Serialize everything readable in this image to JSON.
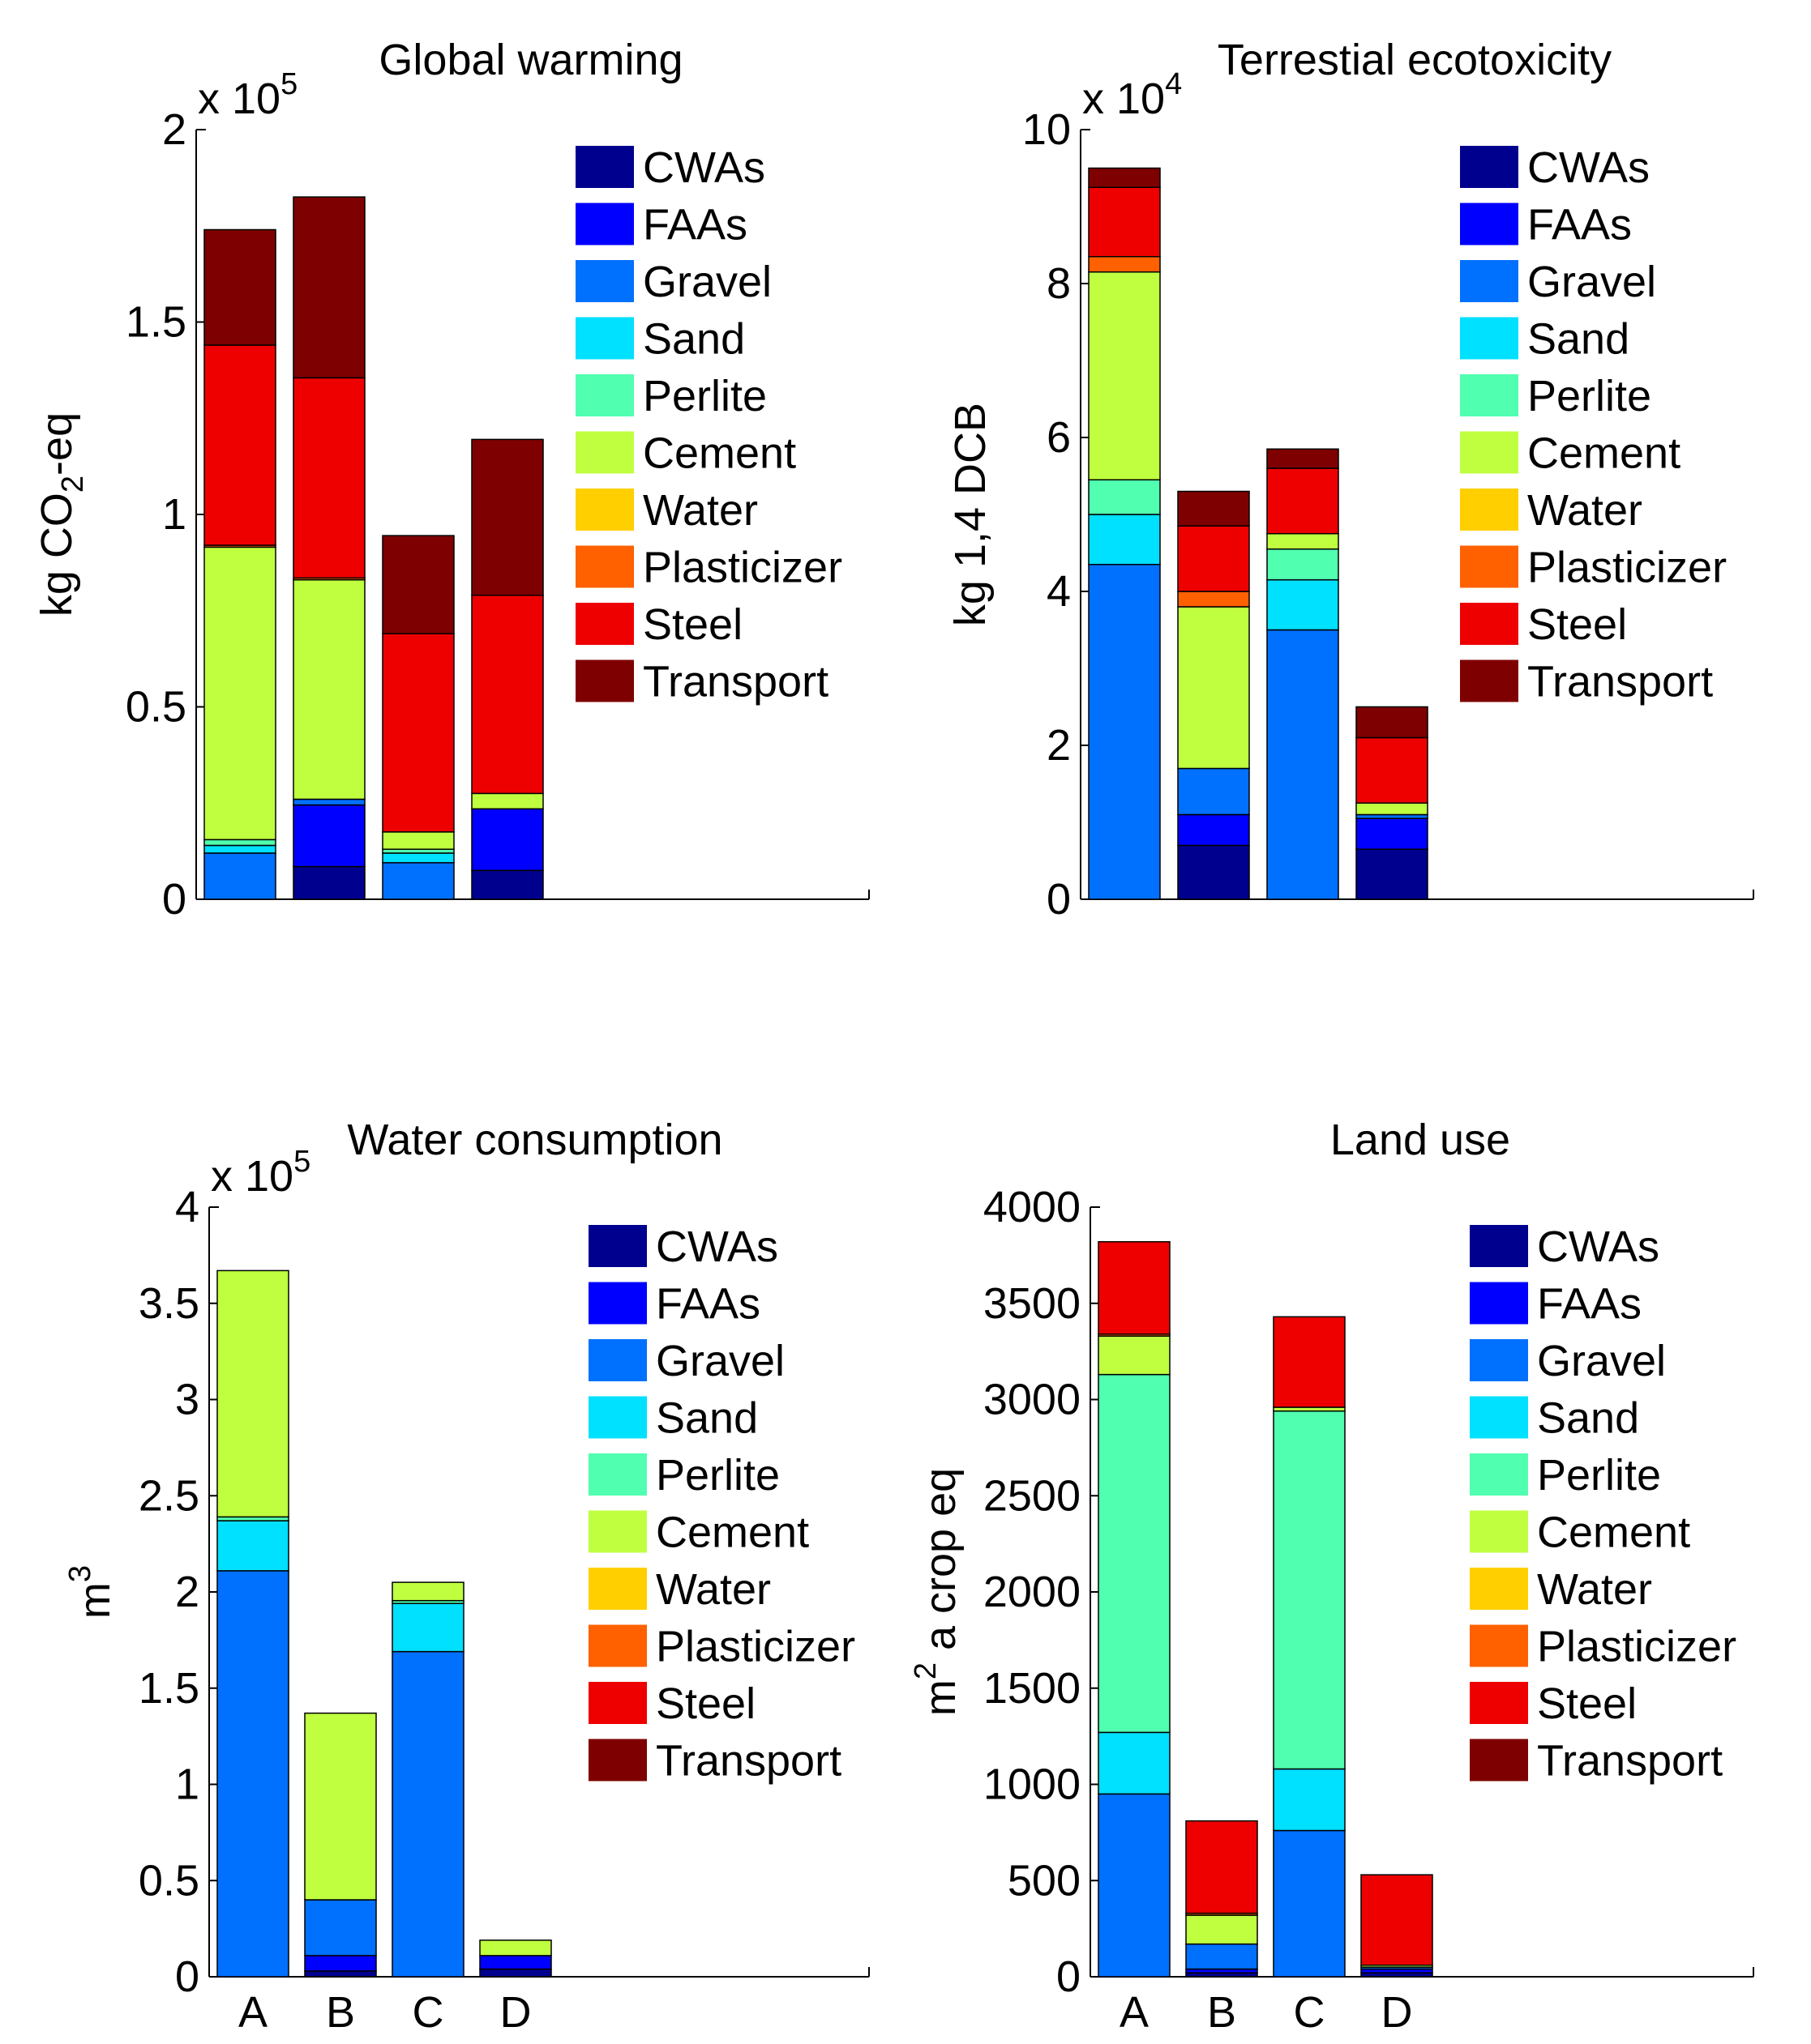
{
  "legend_labels": [
    "CWAs",
    "FAAs",
    "Gravel",
    "Sand",
    "Perlite",
    "Cement",
    "Water",
    "Plasticizer",
    "Steel",
    "Transport"
  ],
  "colors": {
    "CWAs": "#00008f",
    "FAAs": "#0000ff",
    "Gravel": "#0070ff",
    "Sand": "#00e0ff",
    "Perlite": "#50ffaf",
    "Cement": "#bfff40",
    "Water": "#ffcf00",
    "Plasticizer": "#ff6000",
    "Steel": "#ef0000",
    "Transport": "#7f0000"
  },
  "chart_data": [
    {
      "type": "bar",
      "stacked": true,
      "title": "Global warming",
      "ylabel": "kg CO2-eq",
      "ylabel_sub": "2",
      "ylabel_parts": [
        "kg CO",
        "-eq"
      ],
      "multiplier": "x 10",
      "multiplier_exp": "5",
      "ylim": [
        0,
        200000
      ],
      "yticks": [
        0,
        50000,
        100000,
        150000,
        200000
      ],
      "ytick_labels": [
        "0",
        "0.5",
        "1",
        "1.5",
        "2"
      ],
      "categories": [
        "A",
        "B",
        "C",
        "D"
      ],
      "show_xtick_labels": false,
      "series": [
        {
          "name": "CWAs",
          "values": [
            0,
            8500,
            0,
            7500
          ]
        },
        {
          "name": "FAAs",
          "values": [
            0,
            16000,
            0,
            16000
          ]
        },
        {
          "name": "Gravel",
          "values": [
            12000,
            1500,
            9500,
            0
          ]
        },
        {
          "name": "Sand",
          "values": [
            2000,
            0,
            2500,
            0
          ]
        },
        {
          "name": "Perlite",
          "values": [
            1500,
            0,
            1000,
            0
          ]
        },
        {
          "name": "Cement",
          "values": [
            76000,
            57000,
            4500,
            4000
          ]
        },
        {
          "name": "Water",
          "values": [
            0,
            0,
            0,
            0
          ]
        },
        {
          "name": "Plasticizer",
          "values": [
            500,
            500,
            0,
            0
          ]
        },
        {
          "name": "Steel",
          "values": [
            52000,
            52000,
            51500,
            51500
          ]
        },
        {
          "name": "Transport",
          "values": [
            30000,
            47000,
            25500,
            40500
          ]
        }
      ]
    },
    {
      "type": "bar",
      "stacked": true,
      "title": "Terrestial ecotoxicity",
      "ylabel": "kg 1,4 DCB",
      "multiplier": "x 10",
      "multiplier_exp": "4",
      "ylim": [
        0,
        100000
      ],
      "yticks": [
        0,
        20000,
        40000,
        60000,
        80000,
        100000
      ],
      "ytick_labels": [
        "0",
        "2",
        "4",
        "6",
        "8",
        "10"
      ],
      "categories": [
        "A",
        "B",
        "C",
        "D"
      ],
      "show_xtick_labels": false,
      "series": [
        {
          "name": "CWAs",
          "values": [
            0,
            7000,
            0,
            6500
          ]
        },
        {
          "name": "FAAs",
          "values": [
            0,
            4000,
            0,
            4000
          ]
        },
        {
          "name": "Gravel",
          "values": [
            43500,
            6000,
            35000,
            500
          ]
        },
        {
          "name": "Sand",
          "values": [
            6500,
            0,
            6500,
            0
          ]
        },
        {
          "name": "Perlite",
          "values": [
            4500,
            0,
            4000,
            0
          ]
        },
        {
          "name": "Cement",
          "values": [
            27000,
            21000,
            2000,
            1500
          ]
        },
        {
          "name": "Water",
          "values": [
            0,
            0,
            0,
            0
          ]
        },
        {
          "name": "Plasticizer",
          "values": [
            2000,
            2000,
            0,
            0
          ]
        },
        {
          "name": "Steel",
          "values": [
            9000,
            8500,
            8500,
            8500
          ]
        },
        {
          "name": "Transport",
          "values": [
            2500,
            4500,
            2500,
            4000
          ]
        }
      ]
    },
    {
      "type": "bar",
      "stacked": true,
      "title": "Water consumption",
      "ylabel": "m3",
      "ylabel_sup": "3",
      "ylabel_parts": [
        "m",
        ""
      ],
      "multiplier": "x 10",
      "multiplier_exp": "5",
      "ylim": [
        0,
        400000
      ],
      "yticks": [
        0,
        50000,
        100000,
        150000,
        200000,
        250000,
        300000,
        350000,
        400000
      ],
      "ytick_labels": [
        "0",
        "0.5",
        "1",
        "1.5",
        "2",
        "2.5",
        "3",
        "3.5",
        "4"
      ],
      "categories": [
        "A",
        "B",
        "C",
        "D"
      ],
      "show_xtick_labels": true,
      "series": [
        {
          "name": "CWAs",
          "values": [
            0,
            3000,
            0,
            4000
          ]
        },
        {
          "name": "FAAs",
          "values": [
            0,
            8000,
            0,
            7000
          ]
        },
        {
          "name": "Gravel",
          "values": [
            211000,
            29000,
            169000,
            0
          ]
        },
        {
          "name": "Sand",
          "values": [
            26000,
            0,
            25000,
            0
          ]
        },
        {
          "name": "Perlite",
          "values": [
            2000,
            0,
            1500,
            0
          ]
        },
        {
          "name": "Cement",
          "values": [
            128000,
            97000,
            9500,
            8000
          ]
        },
        {
          "name": "Water",
          "values": [
            0,
            0,
            0,
            0
          ]
        },
        {
          "name": "Plasticizer",
          "values": [
            0,
            0,
            0,
            0
          ]
        },
        {
          "name": "Steel",
          "values": [
            0,
            0,
            0,
            0
          ]
        },
        {
          "name": "Transport",
          "values": [
            0,
            0,
            0,
            0
          ]
        }
      ]
    },
    {
      "type": "bar",
      "stacked": true,
      "title": "Land use",
      "ylabel": "m2 a crop eq",
      "ylabel_sup": "2",
      "ylabel_parts": [
        "m",
        " a crop eq"
      ],
      "multiplier": "",
      "multiplier_exp": "",
      "ylim": [
        0,
        4000
      ],
      "yticks": [
        0,
        500,
        1000,
        1500,
        2000,
        2500,
        3000,
        3500,
        4000
      ],
      "ytick_labels": [
        "0",
        "500",
        "1000",
        "1500",
        "2000",
        "2500",
        "3000",
        "3500",
        "4000"
      ],
      "categories": [
        "A",
        "B",
        "C",
        "D"
      ],
      "show_xtick_labels": true,
      "series": [
        {
          "name": "CWAs",
          "values": [
            0,
            20,
            0,
            20
          ]
        },
        {
          "name": "FAAs",
          "values": [
            0,
            20,
            0,
            20
          ]
        },
        {
          "name": "Gravel",
          "values": [
            950,
            130,
            760,
            10
          ]
        },
        {
          "name": "Sand",
          "values": [
            320,
            0,
            320,
            0
          ]
        },
        {
          "name": "Perlite",
          "values": [
            1860,
            0,
            1860,
            0
          ]
        },
        {
          "name": "Cement",
          "values": [
            200,
            150,
            20,
            10
          ]
        },
        {
          "name": "Water",
          "values": [
            0,
            0,
            0,
            0
          ]
        },
        {
          "name": "Plasticizer",
          "values": [
            10,
            10,
            0,
            0
          ]
        },
        {
          "name": "Steel",
          "values": [
            480,
            480,
            470,
            470
          ]
        },
        {
          "name": "Transport",
          "values": [
            0,
            0,
            0,
            0
          ]
        }
      ]
    }
  ]
}
